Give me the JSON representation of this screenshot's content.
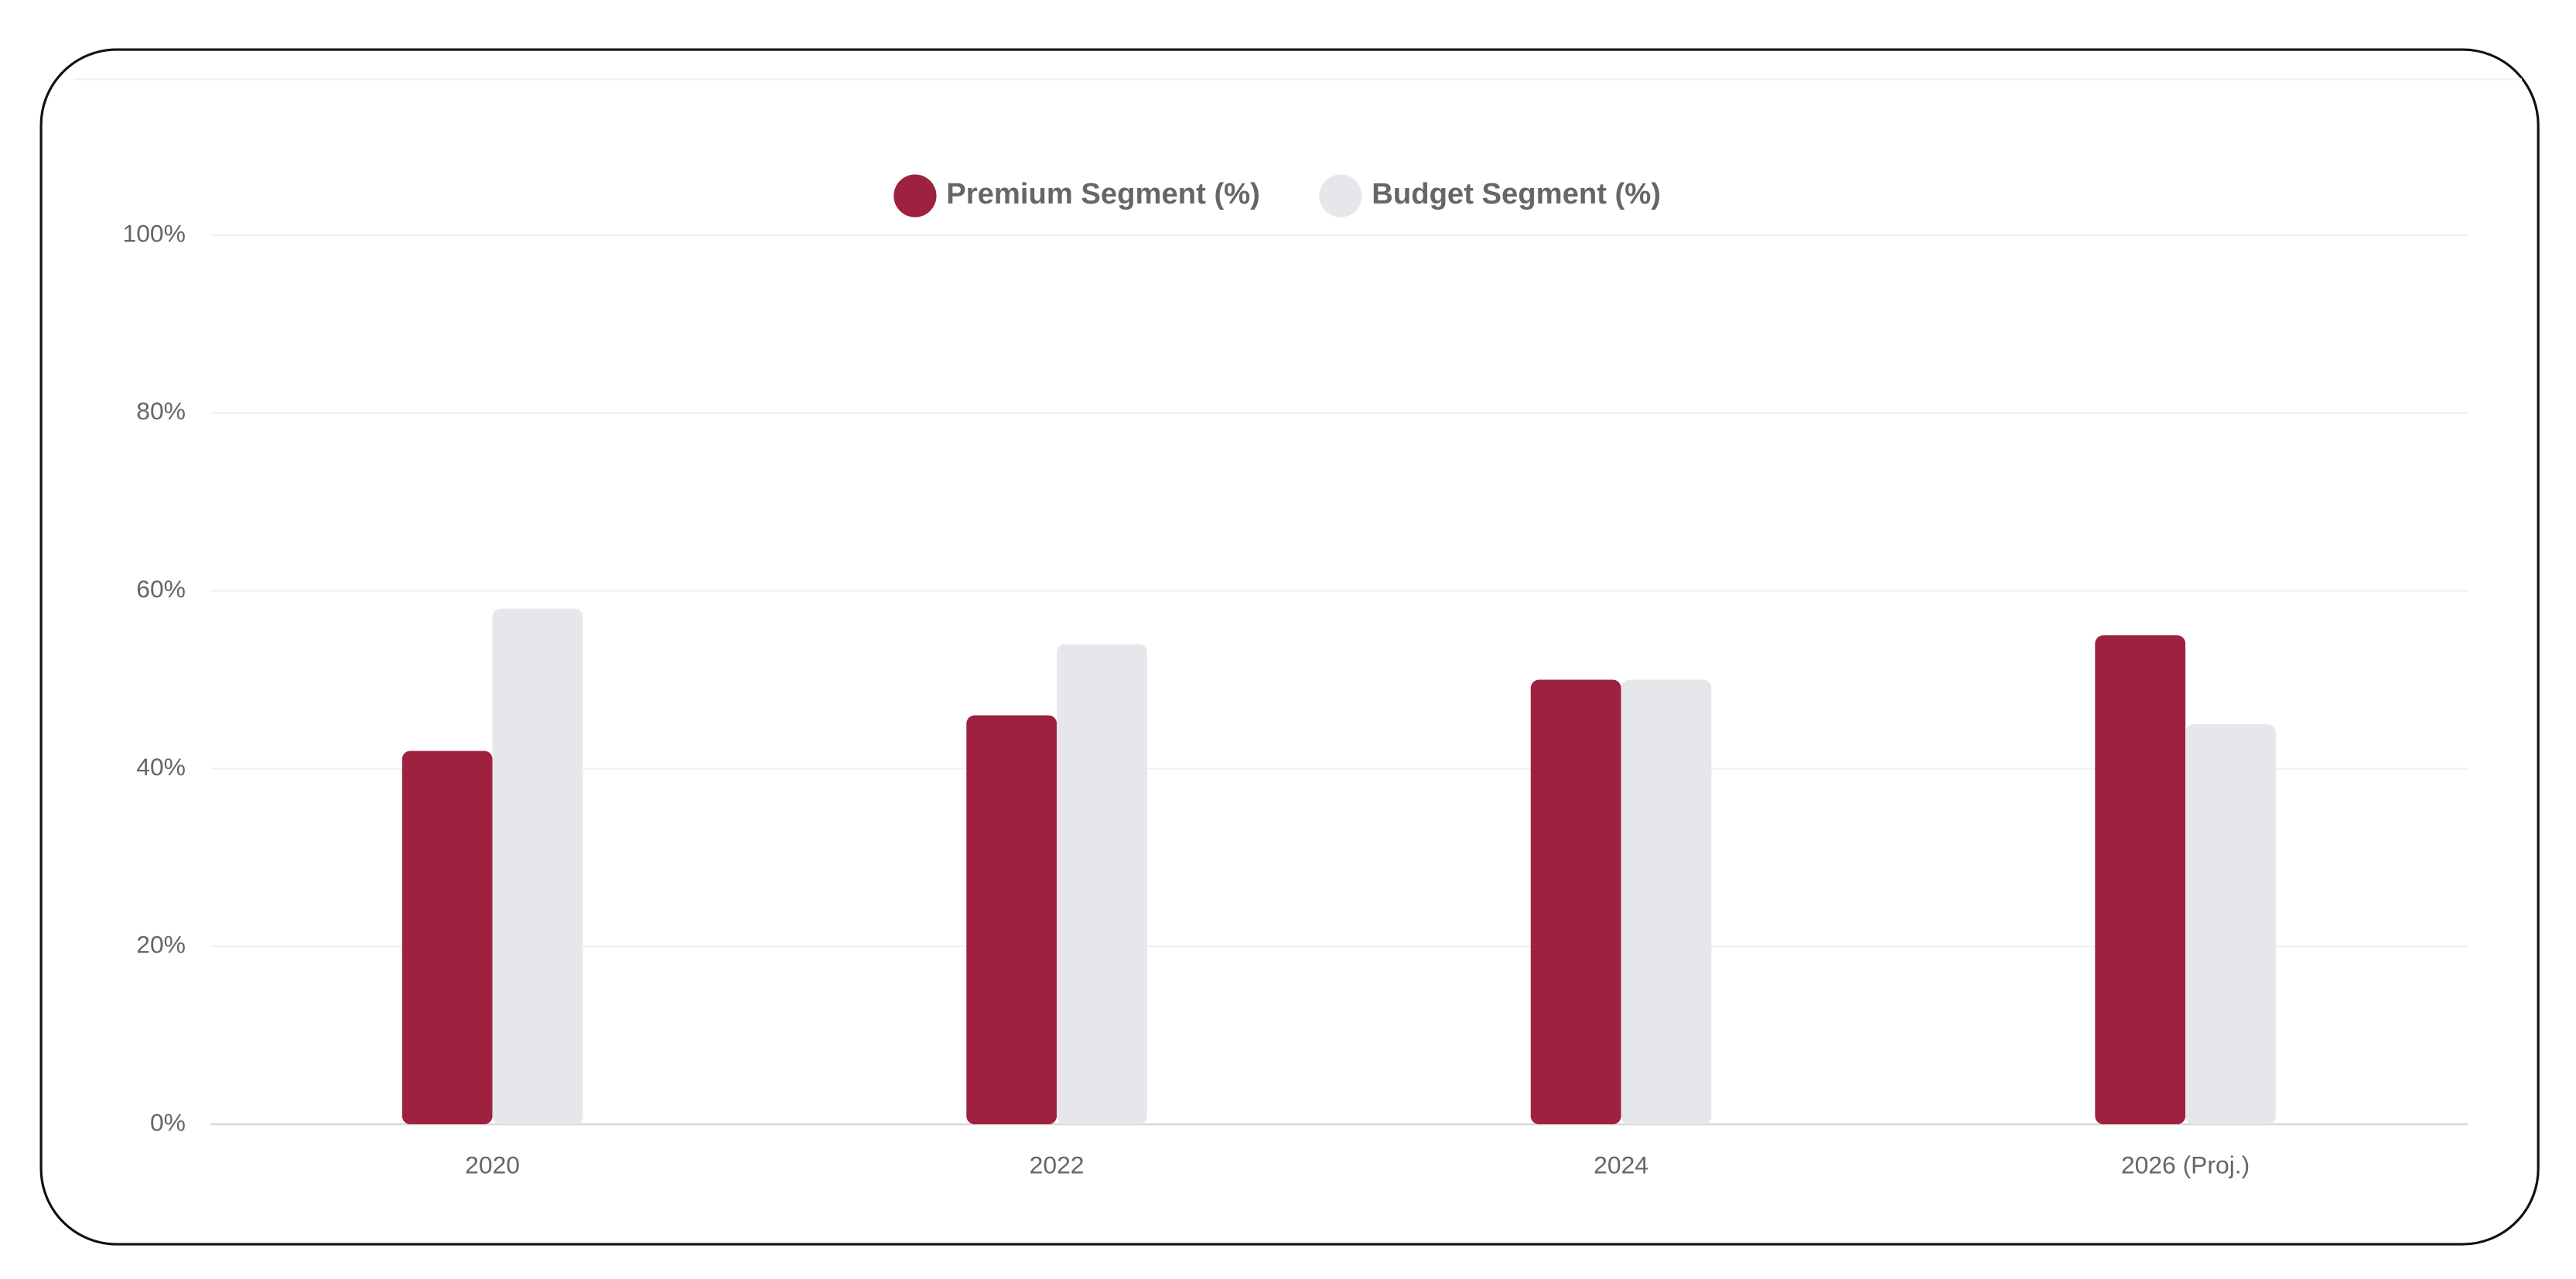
{
  "chart_data": {
    "type": "bar",
    "categories": [
      "2020",
      "2022",
      "2024",
      "2026 (Proj.)"
    ],
    "series": [
      {
        "name": "Premium Segment (%)",
        "color": "#9e2140",
        "values": [
          42,
          46,
          50,
          55
        ]
      },
      {
        "name": "Budget Segment (%)",
        "color": "#e5e7eb",
        "values": [
          58,
          54,
          50,
          45
        ]
      }
    ],
    "ylim": [
      0,
      100
    ],
    "yticks": [
      {
        "value": 0,
        "label": "0%"
      },
      {
        "value": 20,
        "label": "20%"
      },
      {
        "value": 40,
        "label": "40%"
      },
      {
        "value": 60,
        "label": "60%"
      },
      {
        "value": 80,
        "label": "80%"
      },
      {
        "value": 100,
        "label": "100%"
      }
    ],
    "grid": true,
    "legend": "top"
  }
}
